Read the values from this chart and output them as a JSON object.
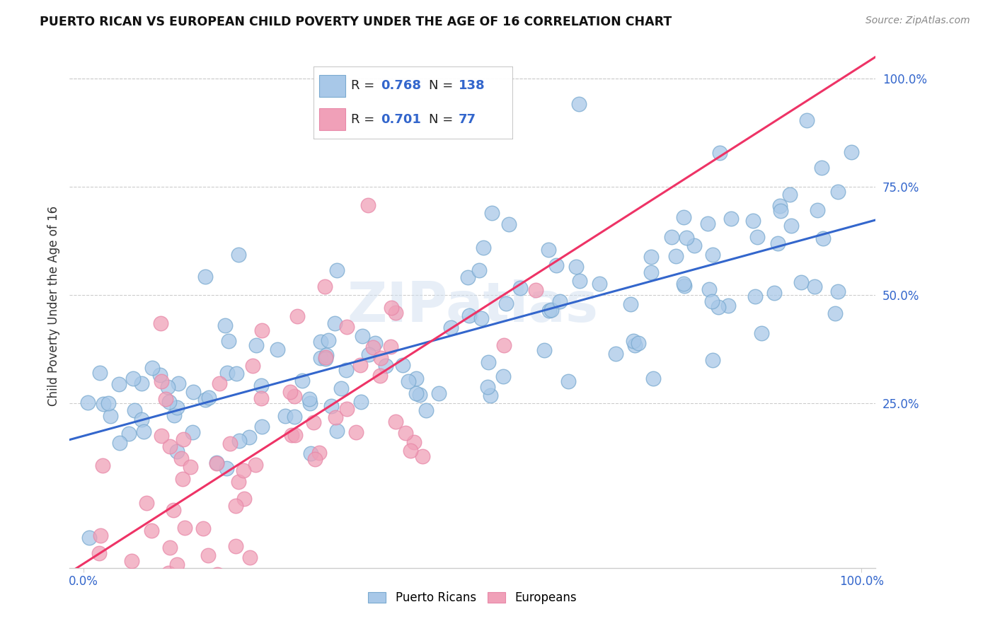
{
  "title": "PUERTO RICAN VS EUROPEAN CHILD POVERTY UNDER THE AGE OF 16 CORRELATION CHART",
  "source": "Source: ZipAtlas.com",
  "ylabel": "Child Poverty Under the Age of 16",
  "yticks": [
    "25.0%",
    "50.0%",
    "75.0%",
    "100.0%"
  ],
  "ytick_vals": [
    0.25,
    0.5,
    0.75,
    1.0
  ],
  "blue_color": "#a8c8e8",
  "pink_color": "#f0a0b8",
  "blue_edge_color": "#7aaad0",
  "pink_edge_color": "#e888a8",
  "blue_line_color": "#3366cc",
  "pink_line_color": "#ee3366",
  "blue_label": "Puerto Ricans",
  "pink_label": "Europeans",
  "watermark": "ZIPatlas",
  "blue_intercept": 0.175,
  "blue_slope": 0.49,
  "pink_intercept": -0.12,
  "pink_slope": 1.15,
  "blue_seed": 42,
  "pink_seed": 7,
  "blue_N": 138,
  "pink_N": 77,
  "blue_R": 0.768,
  "pink_R": 0.701,
  "legend_blue_r": "0.768",
  "legend_blue_n": "138",
  "legend_pink_r": "0.701",
  "legend_pink_n": "77"
}
